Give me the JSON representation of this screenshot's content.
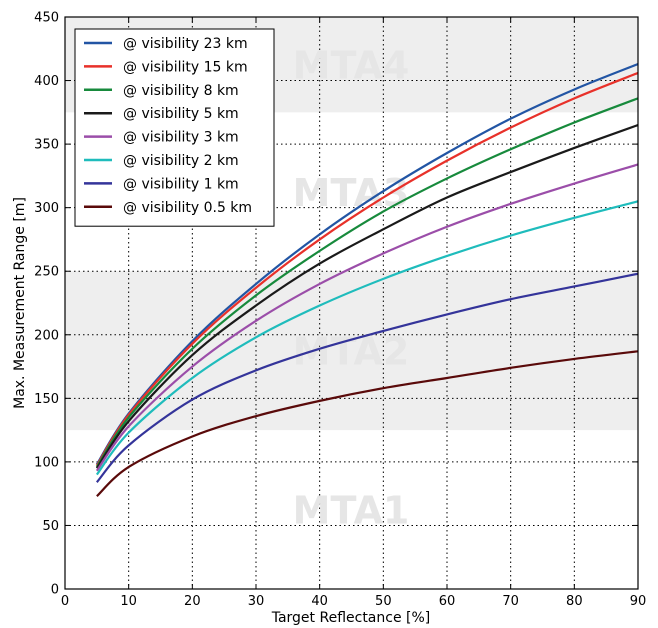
{
  "chart_data": {
    "type": "line",
    "title": "",
    "xlabel": "Target Reflectance [%]",
    "ylabel": "Max. Measurement Range [m]",
    "xlim": [
      0,
      90
    ],
    "ylim": [
      0,
      450
    ],
    "xticks": [
      0,
      10,
      20,
      30,
      40,
      50,
      60,
      70,
      80,
      90
    ],
    "yticks": [
      0,
      50,
      100,
      150,
      200,
      250,
      300,
      350,
      400,
      450
    ],
    "grid": true,
    "legend_position": "top-left",
    "bands": [
      {
        "label": "MTA1",
        "y0": 0,
        "y1": 125,
        "shaded": false
      },
      {
        "label": "MTA2",
        "y0": 125,
        "y1": 250,
        "shaded": true
      },
      {
        "label": "MTA3",
        "y0": 250,
        "y1": 375,
        "shaded": false
      },
      {
        "label": "MTA4",
        "y0": 375,
        "y1": 450,
        "shaded": true
      }
    ],
    "x": [
      5,
      10,
      20,
      30,
      40,
      50,
      60,
      70,
      80,
      90
    ],
    "series": [
      {
        "name": "@ visibility 23 km",
        "color": "#2255a4",
        "values": [
          98,
          138,
          195,
          240,
          279,
          313,
          343,
          370,
          393,
          413
        ]
      },
      {
        "name": "@ visibility 15 km",
        "color": "#e8312a",
        "values": [
          97,
          137,
          193,
          237,
          275,
          308,
          337,
          363,
          386,
          406
        ]
      },
      {
        "name": "@ visibility 8 km",
        "color": "#178a3c",
        "values": [
          96,
          135,
          189,
          231,
          266,
          297,
          323,
          346,
          367,
          386
        ]
      },
      {
        "name": "@ visibility 5 km",
        "color": "#1a1a1a",
        "values": [
          95,
          132,
          184,
          223,
          256,
          283,
          308,
          328,
          347,
          365
        ]
      },
      {
        "name": "@ visibility 3 km",
        "color": "#9b4ea9",
        "values": [
          93,
          128,
          175,
          211,
          240,
          264,
          285,
          303,
          319,
          334
        ]
      },
      {
        "name": "@ visibility 2 km",
        "color": "#1fbcbc",
        "values": [
          90,
          123,
          166,
          198,
          223,
          244,
          262,
          278,
          292,
          305
        ]
      },
      {
        "name": "@ visibility 1 km",
        "color": "#34349a",
        "values": [
          84,
          113,
          149,
          172,
          189,
          203,
          216,
          228,
          238,
          248
        ]
      },
      {
        "name": "@ visibility 0.5 km",
        "color": "#5a0a0a",
        "values": [
          73,
          96,
          120,
          136,
          148,
          158,
          166,
          174,
          181,
          187
        ]
      }
    ]
  }
}
